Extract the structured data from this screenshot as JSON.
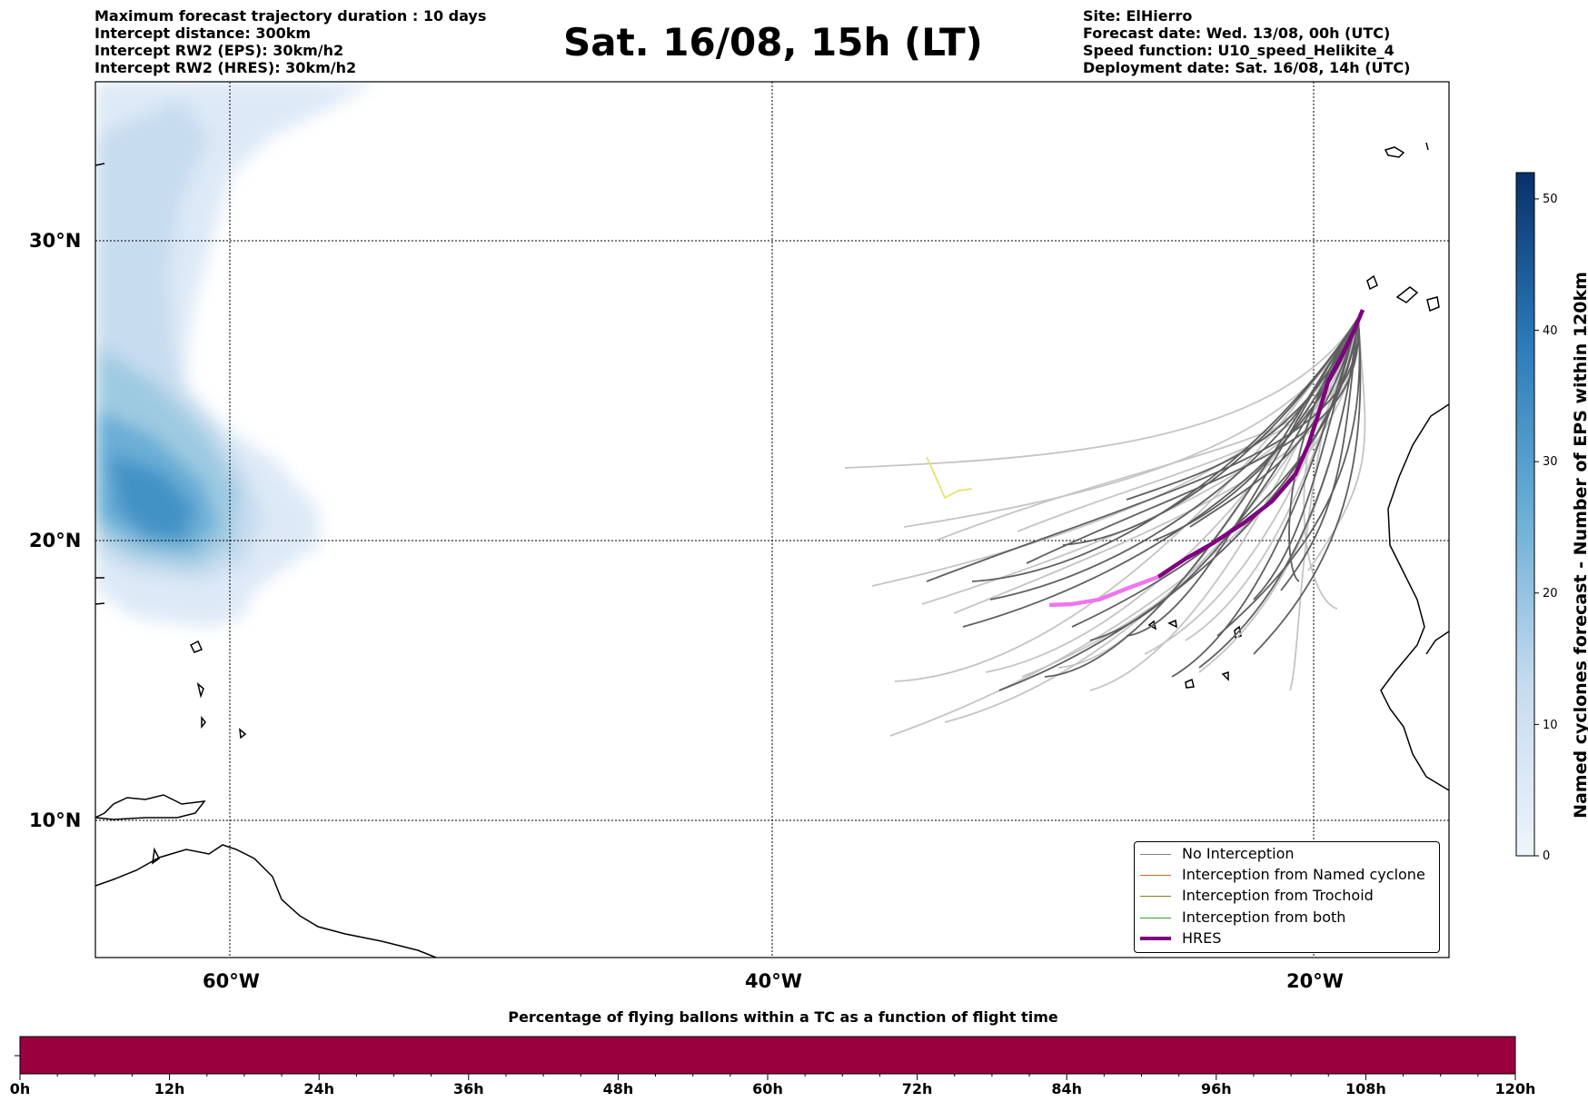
{
  "header_left": {
    "line1": "Maximum forecast trajectory duration : 10 days",
    "line2": "Intercept distance: 300km",
    "line3": "Intercept RW2 (EPS):  30km/h2",
    "line4": "Intercept RW2 (HRES): 30km/h2"
  },
  "title": "Sat. 16/08, 15h (LT)",
  "header_right": {
    "site": "Site: ElHierro",
    "forecast_date": "Forecast date: Wed. 13/08, 00h (UTC)",
    "speed_function": "Speed function: U10_speed_Helikite_4",
    "deployment_date": "Deployment date: Sat. 16/08, 14h (UTC)"
  },
  "map": {
    "lat_labels": [
      "30°N",
      "20°N",
      "10°N"
    ],
    "lon_labels": [
      "60°W",
      "40°W",
      "20°W"
    ],
    "lat_values": [
      30,
      20,
      10
    ],
    "lon_values": [
      -60,
      -40,
      -20
    ],
    "gridlines": true
  },
  "colorbar": {
    "title": "Named cyclones forecast - Number of EPS within 120km",
    "ticks": [
      "0",
      "10",
      "20",
      "30",
      "40",
      "50"
    ],
    "tick_values": [
      0,
      10,
      20,
      30,
      40,
      50
    ],
    "max": 52,
    "color_low": "#eef4fb",
    "color_high": "#08306b"
  },
  "legend": {
    "items": [
      {
        "label": "No Interception",
        "color": "#808080",
        "thick": false
      },
      {
        "label": "Interception from Named cyclone",
        "color": "#e8642b",
        "thick": false
      },
      {
        "label": "Interception from Trochoid",
        "color": "#8b7d20",
        "thick": false
      },
      {
        "label": "Interception from both",
        "color": "#2ca02c",
        "thick": false
      },
      {
        "label": "HRES",
        "color": "#800080",
        "thick": true
      }
    ]
  },
  "bottom_bar": {
    "title": "Percentage of flying ballons within a TC as a function of flight time",
    "ticks": [
      "0h",
      "12h",
      "24h",
      "36h",
      "48h",
      "60h",
      "72h",
      "84h",
      "96h",
      "108h",
      "120h"
    ],
    "fill_color": "#99003d",
    "fill_fraction": 1.0
  },
  "colors": {
    "trajectory_dark": "#5f5f5f",
    "trajectory_light": "#c4c4c4",
    "hres": "#800080",
    "hres_pink": "#ee77ee",
    "trochoid_hit": "#e8e070",
    "coast": "#000000"
  }
}
